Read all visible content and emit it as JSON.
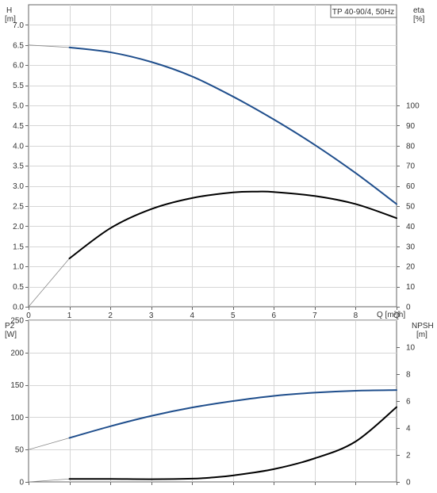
{
  "chart_data": [
    {
      "type": "line",
      "title": "TP 40-90/4, 50Hz",
      "xlabel": "Q [m³/h]",
      "xlim": [
        0,
        9
      ],
      "x_ticks": [
        0,
        1,
        2,
        3,
        4,
        5,
        6,
        7,
        8,
        9
      ],
      "x_tick_labels": [
        "0",
        "1",
        "2",
        "3",
        "4",
        "5",
        "6",
        "7",
        "8",
        "Q"
      ],
      "left_axis": {
        "label_line1": "H",
        "label_line2": "[m]",
        "ylim": [
          0,
          7.5
        ],
        "ticks": [
          0.0,
          0.5,
          1.0,
          1.5,
          2.0,
          2.5,
          3.0,
          3.5,
          4.0,
          4.5,
          5.0,
          5.5,
          6.0,
          6.5,
          7.0
        ],
        "tick_labels": [
          "0.0",
          "0.5",
          "1.0",
          "1.5",
          "2.0",
          "2.5",
          "3.0",
          "3.5",
          "4.0",
          "4.5",
          "5.0",
          "5.5",
          "6.0",
          "6.5",
          "7.0"
        ]
      },
      "right_axis": {
        "label_line1": "eta",
        "label_line2": "[%]",
        "ylim": [
          0,
          150
        ],
        "ticks": [
          0,
          10,
          20,
          30,
          40,
          50,
          60,
          70,
          80,
          90,
          100
        ],
        "tick_labels": [
          "0",
          "10",
          "20",
          "30",
          "40",
          "50",
          "60",
          "70",
          "80",
          "90",
          "100"
        ]
      },
      "grid": true,
      "series": [
        {
          "axis": "left",
          "color": "#1f4e8c",
          "x": [
            0,
            1,
            2,
            3,
            4,
            5,
            6,
            7,
            8,
            9
          ],
          "values": [
            6.5,
            6.44,
            6.32,
            6.08,
            5.72,
            5.22,
            4.65,
            4.02,
            3.32,
            2.55
          ],
          "thin_until": 1
        },
        {
          "axis": "right",
          "color": "#000000",
          "x": [
            0,
            1,
            2,
            3,
            4,
            5,
            5.6,
            6,
            7,
            8,
            9
          ],
          "values": [
            0,
            24,
            39,
            48.5,
            54,
            56.8,
            57.2,
            57,
            55,
            51,
            44
          ],
          "thin_until": 1
        }
      ]
    },
    {
      "type": "line",
      "xlim": [
        0,
        9
      ],
      "x_ticks": [
        0,
        1,
        2,
        3,
        4,
        5,
        6,
        7,
        8,
        9
      ],
      "left_axis": {
        "label_line1": "P2",
        "label_line2": "[W]",
        "ylim": [
          0,
          250
        ],
        "ticks": [
          0,
          50,
          100,
          150,
          200,
          250
        ],
        "tick_labels": [
          "0",
          "50",
          "100",
          "150",
          "200",
          "250"
        ]
      },
      "right_axis": {
        "label_line1": "NPSH",
        "label_line2": "[m]",
        "ylim": [
          0,
          12
        ],
        "ticks": [
          0,
          2,
          4,
          6,
          8,
          10
        ],
        "tick_labels": [
          "0",
          "2",
          "4",
          "6",
          "8",
          "10"
        ]
      },
      "grid": true,
      "series": [
        {
          "axis": "left",
          "color": "#1f4e8c",
          "x": [
            0,
            1,
            2,
            3,
            4,
            5,
            6,
            7,
            8,
            9
          ],
          "values": [
            50,
            68,
            86,
            102,
            115,
            125,
            133,
            138,
            141,
            142
          ],
          "thin_until": 1
        },
        {
          "axis": "right",
          "color": "#000000",
          "x": [
            0,
            1,
            2,
            3,
            4,
            4.5,
            5,
            6,
            7,
            8,
            9
          ],
          "values": [
            0,
            0.22,
            0.22,
            0.2,
            0.24,
            0.33,
            0.48,
            0.95,
            1.75,
            3.0,
            5.55
          ],
          "thin_until": 1
        }
      ]
    }
  ]
}
